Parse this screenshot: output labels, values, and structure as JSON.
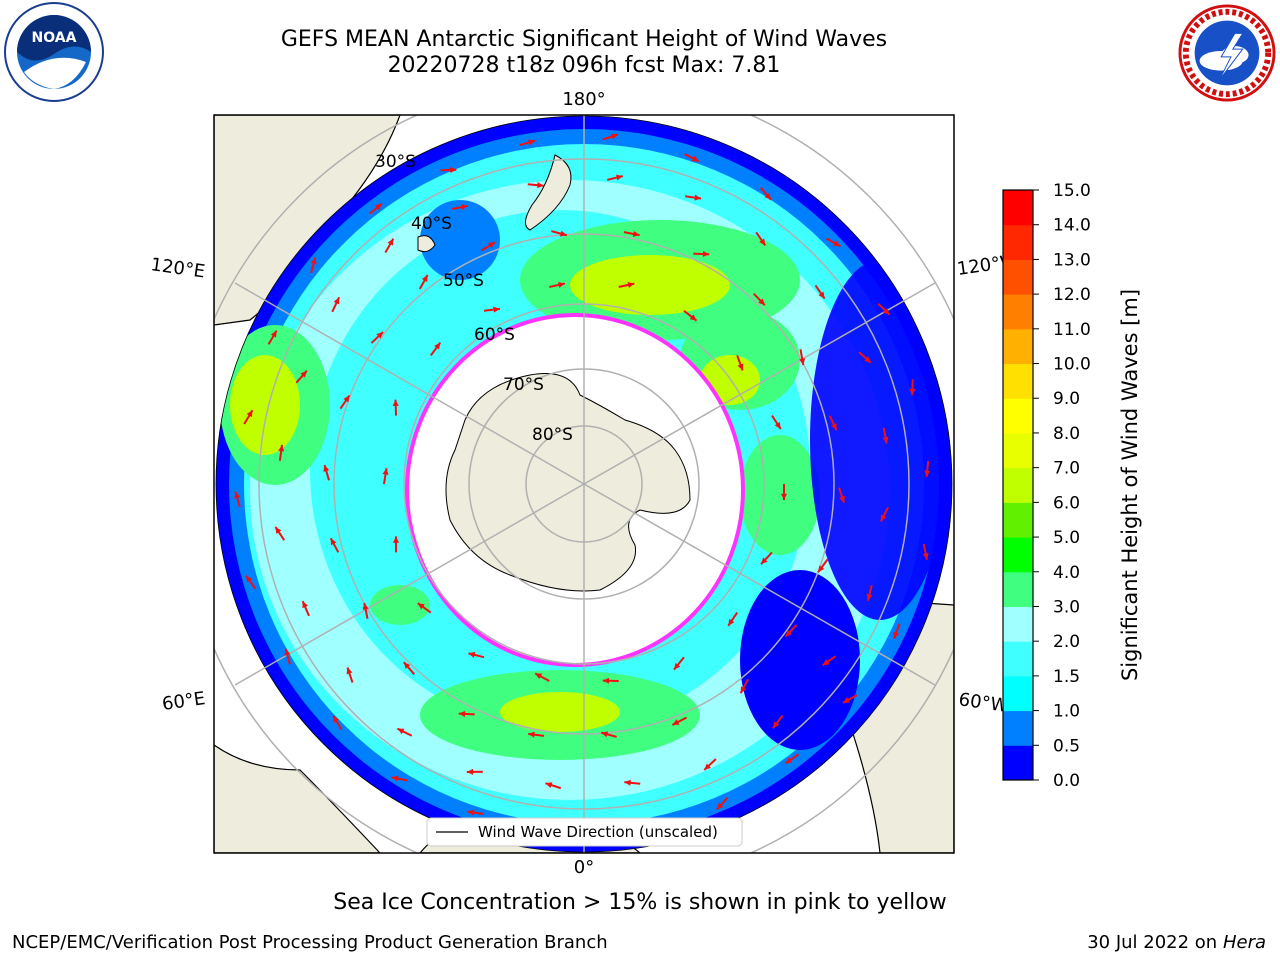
{
  "title": {
    "line1": "GEFS MEAN Antarctic Significant Height of Wind Waves",
    "line2": "20220728 t18z 096h fcst   Max: 7.81"
  },
  "logos": {
    "left": {
      "icon": "noaa-logo",
      "text": "NOAA"
    },
    "right": {
      "icon": "national-weather-service-logo"
    }
  },
  "map": {
    "projection": "south-polar-stereographic",
    "longitude_labels": {
      "top": "180°",
      "bottom": "0°",
      "upper_left": "120°E",
      "lower_left": "60°E",
      "upper_right": "120°W",
      "lower_right": "60°W"
    },
    "latitude_labels": [
      "30°S",
      "40°S",
      "50°S",
      "60°S",
      "70°S",
      "80°S"
    ],
    "legend": "Wind Wave Direction (unscaled)",
    "colors": {
      "land": "#eeecdc",
      "ice_edge": "#ff33ff",
      "arrow": "#ee1111",
      "gridline": "#b0b0b0"
    }
  },
  "colorbar": {
    "label": "Significant Height of Wind Waves [m]",
    "ticks": [
      "0.0",
      "0.5",
      "1.0",
      "1.5",
      "2.0",
      "3.0",
      "4.0",
      "5.0",
      "6.0",
      "7.0",
      "8.0",
      "9.0",
      "10.0",
      "11.0",
      "12.0",
      "13.0",
      "14.0",
      "15.0"
    ],
    "colors": [
      "#0000ff",
      "#0080ff",
      "#00ffff",
      "#40ffff",
      "#a0ffff",
      "#40ff80",
      "#00ff00",
      "#60f000",
      "#c0ff00",
      "#e8ff00",
      "#ffff00",
      "#ffe000",
      "#ffb000",
      "#ff8000",
      "#ff5000",
      "#ff2800",
      "#ff0000"
    ]
  },
  "footer": {
    "note": "Sea Ice Concentration > 15% is shown in pink to yellow",
    "credit": "NCEP/EMC/Verification Post Processing Product Generation Branch",
    "date": "30 Jul 2022 on ",
    "system": "Hera"
  }
}
